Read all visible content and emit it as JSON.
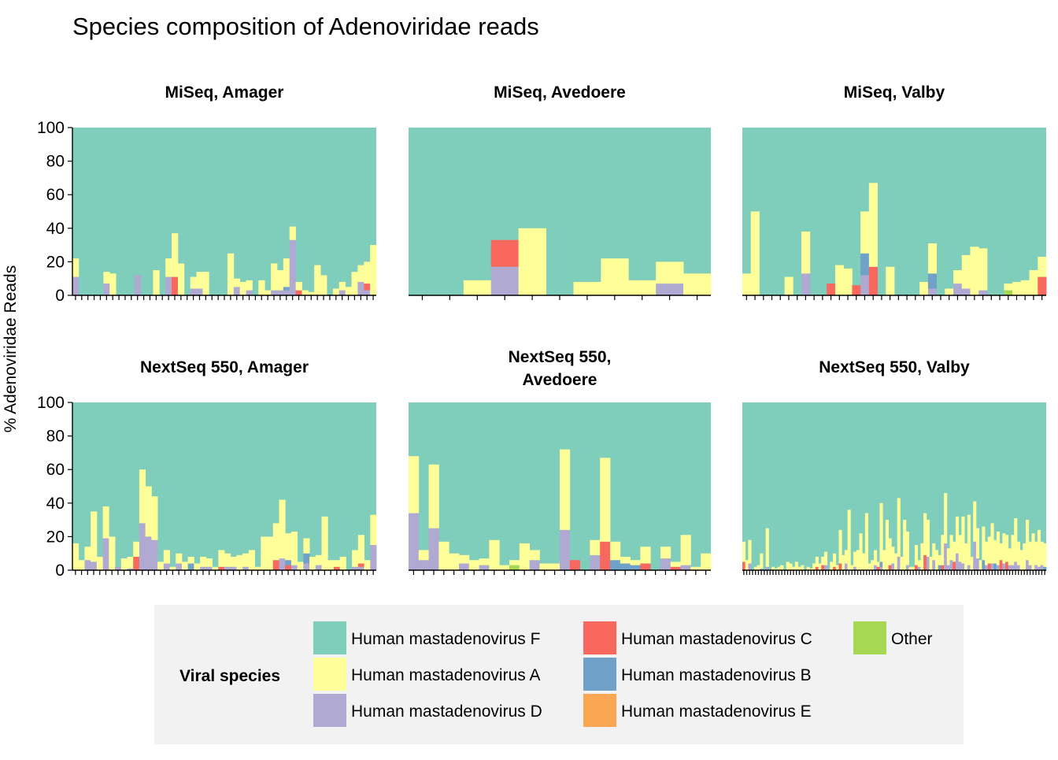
{
  "chart_data": {
    "type": "bar",
    "stacked": true,
    "title": "Species composition of Adenoviridae reads",
    "ylabel": "% Adenoviridae Reads",
    "xlabel": "",
    "ylim": [
      0,
      100
    ],
    "yticks": [
      0,
      20,
      40,
      60,
      80,
      100
    ],
    "grid": false,
    "legend": {
      "title": "Viral species",
      "position": "bottom",
      "entries": [
        {
          "name": "Human mastadenovirus F",
          "color": "#7FCDBB"
        },
        {
          "name": "Human mastadenovirus A",
          "color": "#FFFF99"
        },
        {
          "name": "Human mastadenovirus D",
          "color": "#B0A9D1"
        },
        {
          "name": "Human mastadenovirus C",
          "color": "#F8685E"
        },
        {
          "name": "Human mastadenovirus B",
          "color": "#6FA1C9"
        },
        {
          "name": "Human mastadenovirus E",
          "color": "#FBA652"
        },
        {
          "name": "Other",
          "color": "#A6D854"
        }
      ]
    },
    "species_keys": [
      "D",
      "C",
      "B",
      "E",
      "O",
      "A"
    ],
    "species_colors": {
      "F": "#7FCDBB",
      "A": "#FFFF99",
      "D": "#B0A9D1",
      "C": "#F8685E",
      "B": "#6FA1C9",
      "E": "#FBA652",
      "O": "#A6D854"
    },
    "panels": [
      {
        "strip": [
          "MiSeq, Amager"
        ],
        "samples": [
          {
            "A": 11,
            "D": 11
          },
          {
            "A": 0
          },
          {
            "A": 0
          },
          {
            "A": 0
          },
          {
            "A": 0
          },
          {
            "A": 7,
            "D": 7
          },
          {
            "A": 13
          },
          {
            "A": 0
          },
          {
            "A": 0
          },
          {
            "A": 0
          },
          {
            "A": 0,
            "D": 12
          },
          {
            "A": 0
          },
          {
            "A": 0,
            "D": 0
          },
          {
            "A": 15
          },
          {
            "A": 0
          },
          {
            "A": 11,
            "D": 11
          },
          {
            "A": 26,
            "C": 11
          },
          {
            "A": 19
          },
          {
            "A": 0
          },
          {
            "A": 7,
            "D": 4
          },
          {
            "A": 10,
            "D": 4
          },
          {
            "A": 14
          },
          {
            "A": 0
          },
          {
            "A": 0
          },
          {
            "A": 0
          },
          {
            "A": 25
          },
          {
            "A": 5,
            "D": 5
          },
          {
            "A": 8
          },
          {
            "A": 6,
            "D": 3
          },
          {
            "A": 0
          },
          {
            "A": 9
          },
          {
            "A": 3
          },
          {
            "A": 16,
            "D": 3
          },
          {
            "A": 12,
            "D": 3
          },
          {
            "A": 17,
            "D": 3,
            "B": 2
          },
          {
            "A": 8,
            "D": 33
          },
          {
            "A": 5,
            "C": 3
          },
          {
            "A": 3
          },
          {
            "A": 2
          },
          {
            "A": 18
          },
          {
            "A": 12
          },
          {
            "A": 0
          },
          {
            "A": 4
          },
          {
            "A": 5,
            "D": 3
          },
          {
            "A": 5
          },
          {
            "A": 14
          },
          {
            "A": 10,
            "D": 8
          },
          {
            "A": 13,
            "D": 3,
            "C": 4
          },
          {
            "A": 30
          }
        ]
      },
      {
        "strip": [
          "MiSeq, Avedoere"
        ],
        "samples": [
          {
            "A": 0
          },
          {
            "A": 0
          },
          {
            "A": 9
          },
          {
            "A": 0,
            "D": 17,
            "C": 16
          },
          {
            "A": 40
          },
          {
            "A": 0
          },
          {
            "A": 8
          },
          {
            "A": 22
          },
          {
            "A": 9
          },
          {
            "A": 13,
            "D": 7
          },
          {
            "A": 13
          }
        ]
      },
      {
        "strip": [
          "MiSeq, Valby"
        ],
        "samples": [
          {
            "A": 13
          },
          {
            "A": 50
          },
          {
            "A": 0
          },
          {
            "A": 0
          },
          {
            "A": 0
          },
          {
            "A": 11
          },
          {
            "A": 0
          },
          {
            "A": 25,
            "D": 13
          },
          {
            "A": 0
          },
          {
            "A": 0
          },
          {
            "A": 0,
            "C": 7
          },
          {
            "A": 18
          },
          {
            "A": 16
          },
          {
            "A": 0,
            "C": 6
          },
          {
            "A": 25,
            "D": 12,
            "B": 13
          },
          {
            "A": 50,
            "C": 17
          },
          {
            "A": 0
          },
          {
            "A": 17
          },
          {
            "A": 0
          },
          {
            "A": 0
          },
          {
            "A": 0
          },
          {
            "A": 8
          },
          {
            "A": 18,
            "D": 4,
            "B": 9
          },
          {
            "A": 0
          },
          {
            "A": 4
          },
          {
            "A": 8,
            "D": 7
          },
          {
            "A": 20,
            "D": 4
          },
          {
            "A": 29
          },
          {
            "A": 25,
            "D": 3
          },
          {
            "A": 0
          },
          {
            "A": 0
          },
          {
            "A": 4,
            "O": 3
          },
          {
            "A": 8
          },
          {
            "A": 9
          },
          {
            "A": 15
          },
          {
            "A": 12,
            "C": 11
          }
        ]
      },
      {
        "strip": [
          "NextSeq 550, Amager"
        ],
        "samples": [
          {
            "A": 16
          },
          {
            "A": 6
          },
          {
            "A": 8,
            "D": 6
          },
          {
            "A": 30,
            "D": 5
          },
          {
            "A": 8
          },
          {
            "A": 19,
            "D": 19
          },
          {
            "A": 20
          },
          {
            "A": 0,
            "D": 2
          },
          {
            "A": 7
          },
          {
            "A": 7,
            "D": 1
          },
          {
            "A": 9,
            "C": 8
          },
          {
            "A": 32,
            "D": 28
          },
          {
            "A": 30,
            "D": 20
          },
          {
            "A": 26,
            "D": 18
          },
          {
            "A": 5
          },
          {
            "A": 8,
            "D": 4
          },
          {
            "A": 2
          },
          {
            "A": 6,
            "D": 4
          },
          {
            "A": 5
          },
          {
            "A": 4,
            "B": 4
          },
          {
            "A": 4
          },
          {
            "A": 6,
            "D": 2
          },
          {
            "A": 5,
            "D": 2
          },
          {
            "A": 2
          },
          {
            "A": 10,
            "C": 2
          },
          {
            "A": 8,
            "D": 2
          },
          {
            "A": 6,
            "D": 2
          },
          {
            "A": 9
          },
          {
            "A": 8,
            "D": 2
          },
          {
            "A": 12
          },
          {
            "A": 2
          },
          {
            "A": 20
          },
          {
            "A": 20
          },
          {
            "A": 22,
            "C": 6
          },
          {
            "A": 35,
            "D": 7
          },
          {
            "A": 16,
            "C": 3,
            "B": 3
          },
          {
            "A": 20,
            "D": 3
          },
          {
            "A": 5
          },
          {
            "A": 9,
            "D": 4,
            "B": 6
          },
          {
            "A": 8
          },
          {
            "A": 6,
            "D": 3
          },
          {
            "A": 32
          },
          {
            "A": 6
          },
          {
            "A": 4,
            "C": 2
          },
          {
            "A": 8
          },
          {
            "A": 0
          },
          {
            "A": 10,
            "D": 2
          },
          {
            "A": 17,
            "D": 2,
            "C": 2
          },
          {
            "A": 6
          },
          {
            "A": 18,
            "D": 15
          }
        ]
      },
      {
        "strip": [
          "NextSeq 550,",
          "Avedoere"
        ],
        "samples": [
          {
            "A": 34,
            "D": 34
          },
          {
            "A": 6,
            "D": 6
          },
          {
            "A": 38,
            "D": 25
          },
          {
            "A": 17
          },
          {
            "A": 10
          },
          {
            "A": 5,
            "D": 4
          },
          {
            "A": 6
          },
          {
            "A": 4,
            "D": 3
          },
          {
            "A": 18
          },
          {
            "A": 3
          },
          {
            "A": 3,
            "O": 3
          },
          {
            "A": 16
          },
          {
            "A": 6,
            "D": 6
          },
          {
            "A": 4
          },
          {
            "A": 4
          },
          {
            "A": 48,
            "D": 24
          },
          {
            "A": 0,
            "C": 6
          },
          {
            "A": 0
          },
          {
            "A": 9,
            "D": 9
          },
          {
            "A": 50,
            "C": 17
          },
          {
            "A": 11,
            "B": 6
          },
          {
            "A": 4,
            "B": 4
          },
          {
            "A": 3,
            "B": 3
          },
          {
            "A": 10,
            "C": 4
          },
          {
            "A": 0
          },
          {
            "A": 7,
            "D": 7
          },
          {
            "A": 3,
            "C": 2
          },
          {
            "A": 18,
            "D": 3
          },
          {
            "A": 2
          },
          {
            "A": 10
          }
        ]
      },
      {
        "strip": [
          "NextSeq 550, Valby"
        ],
        "samples": [
          {
            "A": 12,
            "C": 5
          },
          {
            "A": 6
          },
          {
            "A": 14,
            "D": 4
          },
          {
            "A": 0
          },
          {
            "A": 2
          },
          {
            "A": 3
          },
          {
            "A": 9,
            "D": 1
          },
          {
            "A": 0
          },
          {
            "A": 23,
            "D": 2
          },
          {
            "A": 0
          },
          {
            "A": 2
          },
          {
            "A": 1
          },
          {
            "A": 2
          },
          {
            "A": 3
          },
          {
            "A": 0
          },
          {
            "A": 5
          },
          {
            "A": 4
          },
          {
            "A": 2
          },
          {
            "A": 5
          },
          {
            "A": 2
          },
          {
            "A": 3
          },
          {
            "A": 0
          },
          {
            "A": 2
          },
          {
            "A": 1
          },
          {
            "A": 4
          },
          {
            "A": 6,
            "C": 2
          },
          {
            "A": 4
          },
          {
            "A": 5,
            "C": 3
          },
          {
            "A": 8,
            "D": 3
          },
          {
            "A": 0
          },
          {
            "A": 5
          },
          {
            "A": 8,
            "C": 2
          },
          {
            "A": 3
          },
          {
            "A": 20,
            "C": 4
          },
          {
            "A": 9
          },
          {
            "A": 8,
            "D": 4
          },
          {
            "A": 36
          },
          {
            "A": 3
          },
          {
            "A": 9,
            "D": 2
          },
          {
            "A": 12
          },
          {
            "A": 22
          },
          {
            "A": 10
          },
          {
            "A": 34
          },
          {
            "A": 4
          },
          {
            "A": 6
          },
          {
            "A": 9,
            "D": 3
          },
          {
            "A": 3,
            "C": 2
          },
          {
            "A": 35,
            "D": 2,
            "B": 3
          },
          {
            "A": 12
          },
          {
            "A": 30
          },
          {
            "A": 16,
            "C": 3
          },
          {
            "A": 10,
            "D": 4
          },
          {
            "A": 10
          },
          {
            "A": 35,
            "D": 8
          },
          {
            "A": 8
          },
          {
            "A": 30
          },
          {
            "A": 20,
            "D": 3
          },
          {
            "A": 2
          },
          {
            "A": 2
          },
          {
            "A": 12,
            "C": 3
          },
          {
            "A": 4,
            "D": 2
          },
          {
            "A": 16
          },
          {
            "A": 25,
            "C": 9
          },
          {
            "A": 22,
            "D": 8
          },
          {
            "A": 8
          },
          {
            "A": 10,
            "D": 6
          },
          {
            "A": 12
          },
          {
            "A": 6,
            "B": 3
          },
          {
            "A": 18,
            "C": 3
          },
          {
            "A": 30,
            "D": 16
          },
          {
            "A": 10,
            "D": 3
          },
          {
            "A": 15,
            "D": 6
          },
          {
            "A": 12,
            "C": 5
          },
          {
            "A": 22,
            "D": 10
          },
          {
            "A": 16,
            "D": 5
          },
          {
            "A": 28,
            "D": 4
          },
          {
            "A": 16
          },
          {
            "A": 30,
            "D": 3
          },
          {
            "A": 8
          },
          {
            "A": 24,
            "D": 17
          },
          {
            "A": 18,
            "D": 7
          },
          {
            "A": 6
          },
          {
            "A": 20,
            "B": 6
          },
          {
            "A": 14,
            "D": 3
          },
          {
            "A": 16,
            "C": 4
          },
          {
            "A": 24,
            "D": 4
          },
          {
            "A": 14,
            "B": 4
          },
          {
            "A": 20,
            "D": 3
          },
          {
            "A": 10,
            "C": 6
          },
          {
            "A": 18,
            "D": 4
          },
          {
            "A": 16,
            "C": 5
          },
          {
            "A": 10,
            "D": 3
          },
          {
            "A": 18,
            "D": 3
          },
          {
            "A": 26,
            "D": 5
          },
          {
            "A": 14,
            "D": 3
          },
          {
            "A": 12
          },
          {
            "A": 16
          },
          {
            "A": 24,
            "D": 6
          },
          {
            "A": 14,
            "D": 3
          },
          {
            "A": 22
          },
          {
            "A": 14,
            "D": 3
          },
          {
            "A": 22,
            "D": 2
          },
          {
            "A": 14,
            "D": 3
          },
          {
            "A": 14,
            "B": 2
          }
        ]
      }
    ]
  }
}
